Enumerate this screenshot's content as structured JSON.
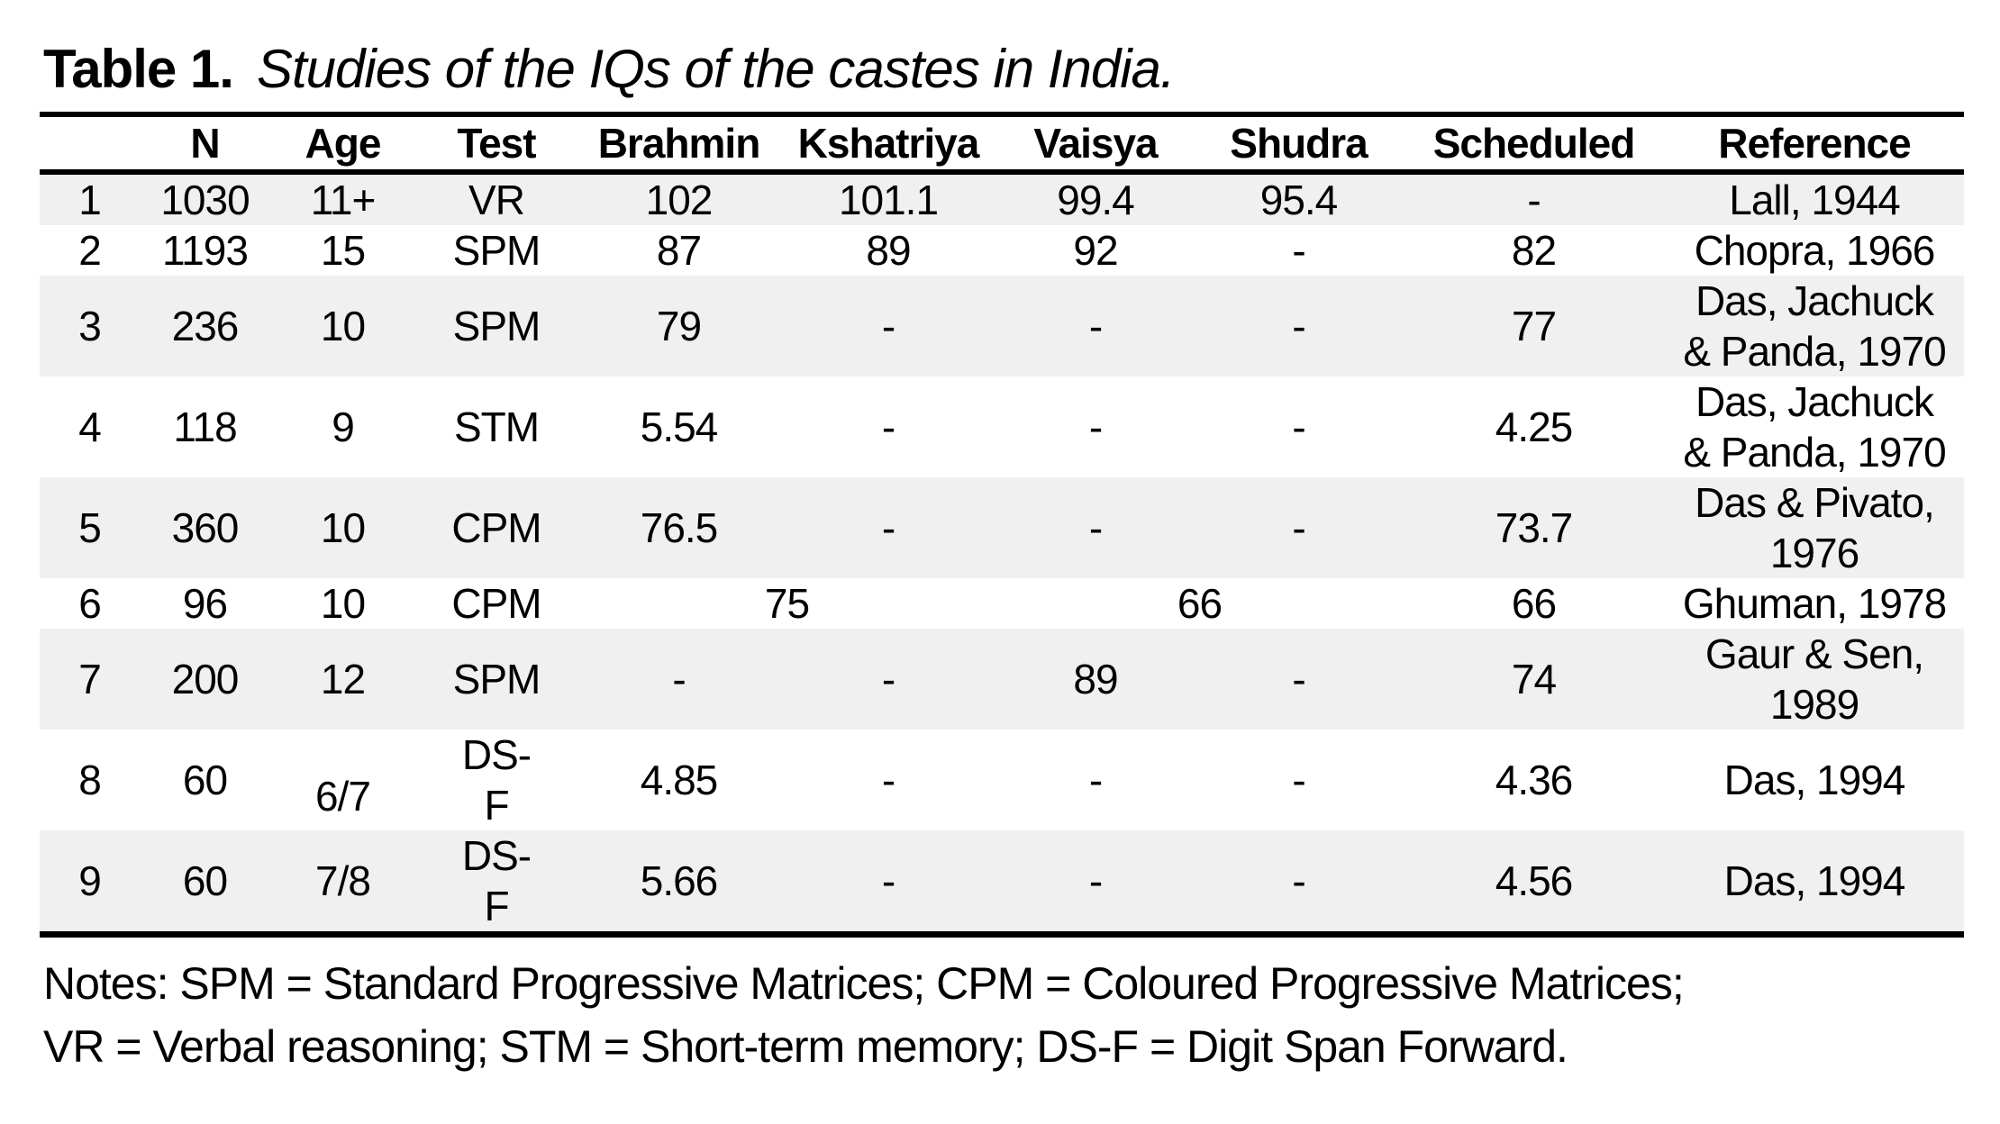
{
  "title": {
    "label": "Table 1.",
    "caption": "Studies of the IQs of the castes in India."
  },
  "table": {
    "columns": [
      "",
      "N",
      "Age",
      "Test",
      "Brahmin",
      "Kshatriya",
      "Vaisya",
      "Shudra",
      "Scheduled",
      "Reference"
    ],
    "rows": [
      {
        "shaded": true,
        "cells": [
          {
            "t": "1"
          },
          {
            "t": "1030"
          },
          {
            "t": "11+"
          },
          {
            "t": "VR"
          },
          {
            "t": "102"
          },
          {
            "t": "101.1"
          },
          {
            "t": "99.4"
          },
          {
            "t": "95.4"
          },
          {
            "t": "-"
          },
          {
            "t": "Lall, 1944"
          }
        ]
      },
      {
        "shaded": false,
        "cells": [
          {
            "t": "2"
          },
          {
            "t": "1193"
          },
          {
            "t": "15"
          },
          {
            "t": "SPM"
          },
          {
            "t": "87"
          },
          {
            "t": "89"
          },
          {
            "t": "92"
          },
          {
            "t": "-"
          },
          {
            "t": "82"
          },
          {
            "t": "Chopra, 1966"
          }
        ]
      },
      {
        "shaded": true,
        "cells": [
          {
            "t": "3"
          },
          {
            "t": "236"
          },
          {
            "t": "10"
          },
          {
            "t": "SPM"
          },
          {
            "t": "79"
          },
          {
            "t": "-"
          },
          {
            "t": "-"
          },
          {
            "t": "-"
          },
          {
            "t": "77"
          },
          {
            "t": "Das, Jachuck\n& Panda, 1970"
          }
        ]
      },
      {
        "shaded": false,
        "cells": [
          {
            "t": "4"
          },
          {
            "t": "118"
          },
          {
            "t": "9"
          },
          {
            "t": "STM"
          },
          {
            "t": "5.54"
          },
          {
            "t": "-"
          },
          {
            "t": "-"
          },
          {
            "t": "-"
          },
          {
            "t": "4.25"
          },
          {
            "t": "Das, Jachuck\n& Panda, 1970"
          }
        ]
      },
      {
        "shaded": true,
        "cells": [
          {
            "t": "5"
          },
          {
            "t": "360"
          },
          {
            "t": "10"
          },
          {
            "t": "CPM"
          },
          {
            "t": "76.5"
          },
          {
            "t": "-"
          },
          {
            "t": "-"
          },
          {
            "t": "-"
          },
          {
            "t": "73.7"
          },
          {
            "t": "Das & Pivato,\n1976"
          }
        ]
      },
      {
        "shaded": false,
        "cells": [
          {
            "t": "6"
          },
          {
            "t": "96"
          },
          {
            "t": "10"
          },
          {
            "t": "CPM"
          },
          {
            "t": "75",
            "span": 2
          },
          {
            "t": "66",
            "span": 2
          },
          {
            "t": "66"
          },
          {
            "t": "Ghuman, 1978"
          }
        ]
      },
      {
        "shaded": true,
        "cells": [
          {
            "t": "7"
          },
          {
            "t": "200"
          },
          {
            "t": "12"
          },
          {
            "t": "SPM"
          },
          {
            "t": "-"
          },
          {
            "t": "-"
          },
          {
            "t": "89"
          },
          {
            "t": "-"
          },
          {
            "t": "74"
          },
          {
            "t": "Gaur & Sen,\n1989"
          }
        ]
      },
      {
        "shaded": false,
        "cells": [
          {
            "t": "8"
          },
          {
            "t": "60"
          },
          {
            "t": "6/7"
          },
          {
            "t": "DS-\nF"
          },
          {
            "t": "4.85"
          },
          {
            "t": "-"
          },
          {
            "t": "-"
          },
          {
            "t": "-"
          },
          {
            "t": "4.36"
          },
          {
            "t": "Das, 1994"
          }
        ]
      },
      {
        "shaded": true,
        "cells": [
          {
            "t": "9"
          },
          {
            "t": "60"
          },
          {
            "t": "7/8"
          },
          {
            "t": "DS-\nF"
          },
          {
            "t": "5.66"
          },
          {
            "t": "-"
          },
          {
            "t": "-"
          },
          {
            "t": "-"
          },
          {
            "t": "4.56"
          },
          {
            "t": "Das, 1994"
          }
        ]
      }
    ]
  },
  "notes": {
    "line1": "Notes: SPM = Standard Progressive Matrices; CPM = Coloured Progressive Matrices;",
    "line2": "VR = Verbal reasoning; STM = Short-term memory; DS-F = Digit Span Forward."
  }
}
